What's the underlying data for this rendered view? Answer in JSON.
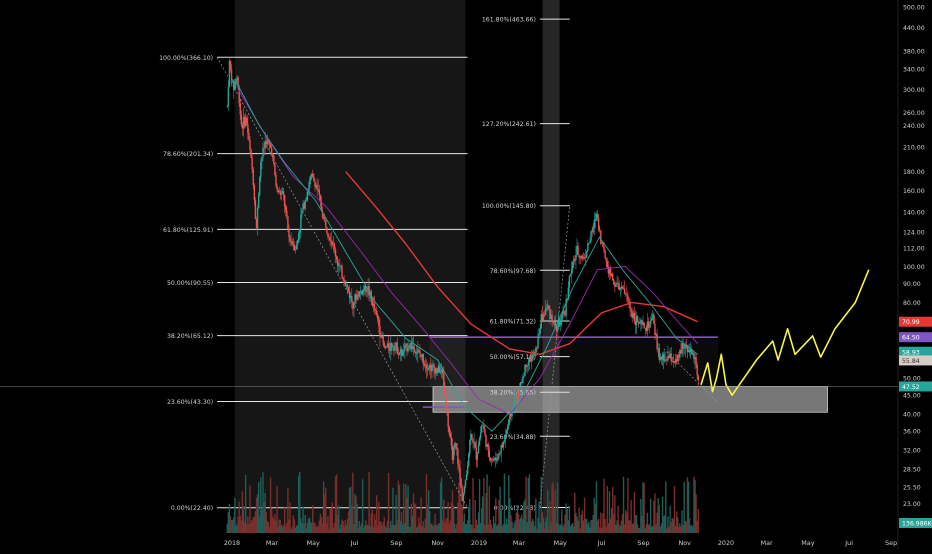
{
  "chart_data": {
    "type": "candlestick",
    "title": "",
    "xlabel": "",
    "ylabel": "",
    "y_scale": "log",
    "ylim": [
      17.5,
      500
    ],
    "xlim": [
      "2017-11-01",
      "2020-09-30"
    ],
    "grid": false,
    "x_ticks": [
      {
        "label": "2018",
        "date": "2018-01-01"
      },
      {
        "label": "Mar",
        "date": "2018-03-01"
      },
      {
        "label": "May",
        "date": "2018-05-01"
      },
      {
        "label": "Jul",
        "date": "2018-07-01"
      },
      {
        "label": "Sep",
        "date": "2018-09-01"
      },
      {
        "label": "Nov",
        "date": "2018-11-01"
      },
      {
        "label": "2019",
        "date": "2019-01-01"
      },
      {
        "label": "Mar",
        "date": "2019-03-01"
      },
      {
        "label": "May",
        "date": "2019-05-01"
      },
      {
        "label": "Jul",
        "date": "2019-07-01"
      },
      {
        "label": "Sep",
        "date": "2019-09-01"
      },
      {
        "label": "Nov",
        "date": "2019-11-01"
      },
      {
        "label": "2020",
        "date": "2020-01-01"
      },
      {
        "label": "Mar",
        "date": "2020-03-01"
      },
      {
        "label": "May",
        "date": "2020-05-01"
      },
      {
        "label": "Jul",
        "date": "2020-07-01"
      },
      {
        "label": "Sep",
        "date": "2020-09-01"
      }
    ],
    "y_ticks": [
      {
        "label": "500.00",
        "value": 500
      },
      {
        "label": "440.00",
        "value": 440
      },
      {
        "label": "380.00",
        "value": 380
      },
      {
        "label": "340.00",
        "value": 340
      },
      {
        "label": "300.00",
        "value": 300
      },
      {
        "label": "260.00",
        "value": 260
      },
      {
        "label": "240.00",
        "value": 240
      },
      {
        "label": "210.00",
        "value": 210
      },
      {
        "label": "180.00",
        "value": 180
      },
      {
        "label": "160.00",
        "value": 160
      },
      {
        "label": "140.00",
        "value": 140
      },
      {
        "label": "124.00",
        "value": 124
      },
      {
        "label": "112.00",
        "value": 112
      },
      {
        "label": "100.00",
        "value": 100
      },
      {
        "label": "90.00",
        "value": 90
      },
      {
        "label": "80.00",
        "value": 80
      },
      {
        "label": "50.00",
        "value": 50
      },
      {
        "label": "45.00",
        "value": 45
      },
      {
        "label": "40.00",
        "value": 40
      },
      {
        "label": "36.00",
        "value": 36
      },
      {
        "label": "32.00",
        "value": 32
      },
      {
        "label": "28.50",
        "value": 28.5
      },
      {
        "label": "25.50",
        "value": 25.5
      },
      {
        "label": "23.00",
        "value": 23
      },
      {
        "label": "20.50",
        "value": 20.5
      }
    ],
    "price_badges": [
      {
        "label": "70.99",
        "value": 70.99,
        "color": "#e53935"
      },
      {
        "label": "64.50",
        "value": 64.5,
        "color": "#7e57c2"
      },
      {
        "label": "58.93",
        "value": 58.93,
        "color": "#26a69a"
      },
      {
        "label": "55.84",
        "value": 55.84,
        "color": "#d7ccc8"
      },
      {
        "label": "47.52",
        "value": 47.52,
        "color": "#26a69a"
      },
      {
        "label": "136.986K",
        "value": 18.6,
        "color": "#26a69a"
      }
    ],
    "fib_sets": [
      {
        "date_start": "2017-12-10",
        "date_end": "2018-12-15",
        "levels": [
          {
            "label": "100.00%(366.10)",
            "value": 366.1
          },
          {
            "label": "78.60%(201.34)",
            "value": 201.34
          },
          {
            "label": "61.80%(125.91)",
            "value": 125.91
          },
          {
            "label": "50.00%(90.55)",
            "value": 90.55
          },
          {
            "label": "38.20%(65.12)",
            "value": 65.12
          },
          {
            "label": "23.60%(43.30)",
            "value": 43.3
          },
          {
            "label": "0.00%(22.40)",
            "value": 22.4
          }
        ]
      },
      {
        "date_start": "2019-04-01",
        "date_end": "2019-05-15",
        "levels": [
          {
            "label": "161.80%(463.66)",
            "value": 463.66
          },
          {
            "label": "127.20%(242.61)",
            "value": 242.61
          },
          {
            "label": "100.00%(145.80)",
            "value": 145.8
          },
          {
            "label": "78.60%(97.68)",
            "value": 97.68
          },
          {
            "label": "61.80%(71.32)",
            "value": 71.32
          },
          {
            "label": "50.00%(57.18)",
            "value": 57.18
          },
          {
            "label": "38.20%(45.85)",
            "value": 45.85
          },
          {
            "label": "23.60%(34.88)",
            "value": 34.88
          },
          {
            "label": "0.00%(22.43)",
            "value": 22.43
          }
        ]
      }
    ],
    "shaded_ranges": [
      {
        "start": "2018-01-05",
        "end": "2018-12-12",
        "color": "#161616"
      },
      {
        "start": "2019-04-05",
        "end": "2019-04-30",
        "color": "#262626"
      }
    ],
    "resistance_line": {
      "value": 64.5,
      "start": "2018-10-20",
      "end": "2019-12-20",
      "color": "#7e57c2"
    },
    "support_zone": {
      "low": 40.5,
      "high": 47.5,
      "start": "2018-10-25",
      "end": "2020-05-30",
      "color": "#d8d8d8"
    },
    "support_line": {
      "value": 41.8,
      "start": "2018-10-10",
      "end": "2018-12-10",
      "color": "#7e57c2"
    },
    "price_path": [
      [
        "2017-12-25",
        270
      ],
      [
        "2017-12-28",
        355
      ],
      [
        "2018-01-03",
        300
      ],
      [
        "2018-01-08",
        330
      ],
      [
        "2018-01-15",
        240
      ],
      [
        "2018-01-22",
        250
      ],
      [
        "2018-02-01",
        175
      ],
      [
        "2018-02-06",
        125
      ],
      [
        "2018-02-12",
        190
      ],
      [
        "2018-02-20",
        220
      ],
      [
        "2018-03-01",
        205
      ],
      [
        "2018-03-08",
        160
      ],
      [
        "2018-03-18",
        155
      ],
      [
        "2018-03-26",
        120
      ],
      [
        "2018-04-06",
        112
      ],
      [
        "2018-04-14",
        140
      ],
      [
        "2018-04-28",
        175
      ],
      [
        "2018-05-06",
        165
      ],
      [
        "2018-05-16",
        135
      ],
      [
        "2018-05-28",
        118
      ],
      [
        "2018-06-08",
        100
      ],
      [
        "2018-06-18",
        90
      ],
      [
        "2018-06-28",
        80
      ],
      [
        "2018-07-08",
        85
      ],
      [
        "2018-07-20",
        88
      ],
      [
        "2018-08-04",
        72
      ],
      [
        "2018-08-14",
        60
      ],
      [
        "2018-08-28",
        62
      ],
      [
        "2018-09-08",
        58
      ],
      [
        "2018-09-20",
        62
      ],
      [
        "2018-10-05",
        58
      ],
      [
        "2018-10-18",
        54
      ],
      [
        "2018-11-08",
        52
      ],
      [
        "2018-11-16",
        38
      ],
      [
        "2018-11-22",
        31
      ],
      [
        "2018-11-28",
        33
      ],
      [
        "2018-12-07",
        24
      ],
      [
        "2018-12-12",
        26
      ],
      [
        "2018-12-20",
        36
      ],
      [
        "2018-12-28",
        31
      ],
      [
        "2019-01-06",
        38
      ],
      [
        "2019-01-15",
        31
      ],
      [
        "2019-01-25",
        30
      ],
      [
        "2019-02-05",
        33
      ],
      [
        "2019-02-20",
        42
      ],
      [
        "2019-03-01",
        46
      ],
      [
        "2019-03-12",
        55
      ],
      [
        "2019-03-25",
        58
      ],
      [
        "2019-04-03",
        72
      ],
      [
        "2019-04-12",
        78
      ],
      [
        "2019-04-25",
        68
      ],
      [
        "2019-05-08",
        75
      ],
      [
        "2019-05-14",
        92
      ],
      [
        "2019-05-25",
        110
      ],
      [
        "2019-06-05",
        105
      ],
      [
        "2019-06-18",
        125
      ],
      [
        "2019-06-24",
        140
      ],
      [
        "2019-06-30",
        118
      ],
      [
        "2019-07-10",
        100
      ],
      [
        "2019-07-20",
        90
      ],
      [
        "2019-08-05",
        85
      ],
      [
        "2019-08-15",
        75
      ],
      [
        "2019-08-25",
        70
      ],
      [
        "2019-09-05",
        68
      ],
      [
        "2019-09-15",
        72
      ],
      [
        "2019-09-25",
        56
      ],
      [
        "2019-10-10",
        57
      ],
      [
        "2019-10-20",
        55
      ],
      [
        "2019-10-30",
        62
      ],
      [
        "2019-11-08",
        60
      ],
      [
        "2019-11-18",
        55
      ],
      [
        "2019-11-22",
        47.52
      ]
    ],
    "moving_averages": [
      {
        "color": "#e53935",
        "points": [
          [
            "2018-06-18",
            180
          ],
          [
            "2018-08-01",
            145
          ],
          [
            "2018-09-15",
            115
          ],
          [
            "2018-11-01",
            88
          ],
          [
            "2018-12-20",
            70
          ],
          [
            "2019-02-15",
            60
          ],
          [
            "2019-04-01",
            58
          ],
          [
            "2019-05-15",
            62
          ],
          [
            "2019-07-01",
            75
          ],
          [
            "2019-08-15",
            80
          ],
          [
            "2019-10-01",
            78
          ],
          [
            "2019-11-20",
            71
          ]
        ]
      },
      {
        "color": "#9c27b0",
        "points": [
          [
            "2018-01-10",
            300
          ],
          [
            "2018-02-20",
            225
          ],
          [
            "2018-04-01",
            175
          ],
          [
            "2018-05-20",
            145
          ],
          [
            "2018-07-10",
            110
          ],
          [
            "2018-08-25",
            85
          ],
          [
            "2018-10-10",
            68
          ],
          [
            "2018-11-20",
            55
          ],
          [
            "2018-12-31",
            44
          ],
          [
            "2019-02-15",
            40
          ],
          [
            "2019-04-01",
            50
          ],
          [
            "2019-05-15",
            70
          ],
          [
            "2019-06-25",
            98
          ],
          [
            "2019-08-05",
            100
          ],
          [
            "2019-09-15",
            85
          ],
          [
            "2019-10-25",
            70
          ],
          [
            "2019-11-20",
            62
          ]
        ]
      },
      {
        "color": "#26a69a",
        "points": [
          [
            "2018-01-05",
            320
          ],
          [
            "2018-02-10",
            240
          ],
          [
            "2018-03-20",
            190
          ],
          [
            "2018-05-05",
            150
          ],
          [
            "2018-06-20",
            108
          ],
          [
            "2018-08-01",
            80
          ],
          [
            "2018-09-15",
            64
          ],
          [
            "2018-11-01",
            56
          ],
          [
            "2018-12-10",
            42
          ],
          [
            "2019-01-20",
            36
          ],
          [
            "2019-03-01",
            43
          ],
          [
            "2019-04-10",
            60
          ],
          [
            "2019-05-20",
            88
          ],
          [
            "2019-06-28",
            120
          ],
          [
            "2019-08-01",
            98
          ],
          [
            "2019-09-10",
            80
          ],
          [
            "2019-10-20",
            64
          ],
          [
            "2019-11-20",
            58
          ]
        ]
      }
    ],
    "projection_path": {
      "color": "#f5f54a",
      "points": [
        [
          "2019-11-25",
          48
        ],
        [
          "2019-12-05",
          55
        ],
        [
          "2019-12-12",
          46
        ],
        [
          "2019-12-18",
          50
        ],
        [
          "2019-12-25",
          58
        ],
        [
          "2020-01-01",
          48
        ],
        [
          "2020-01-10",
          45
        ],
        [
          "2020-02-15",
          56
        ],
        [
          "2020-03-10",
          63
        ],
        [
          "2020-03-18",
          56
        ],
        [
          "2020-04-01",
          68
        ],
        [
          "2020-04-12",
          58
        ],
        [
          "2020-05-08",
          65
        ],
        [
          "2020-05-20",
          57
        ],
        [
          "2020-06-10",
          68
        ],
        [
          "2020-07-10",
          80
        ],
        [
          "2020-07-30",
          98
        ]
      ]
    }
  }
}
